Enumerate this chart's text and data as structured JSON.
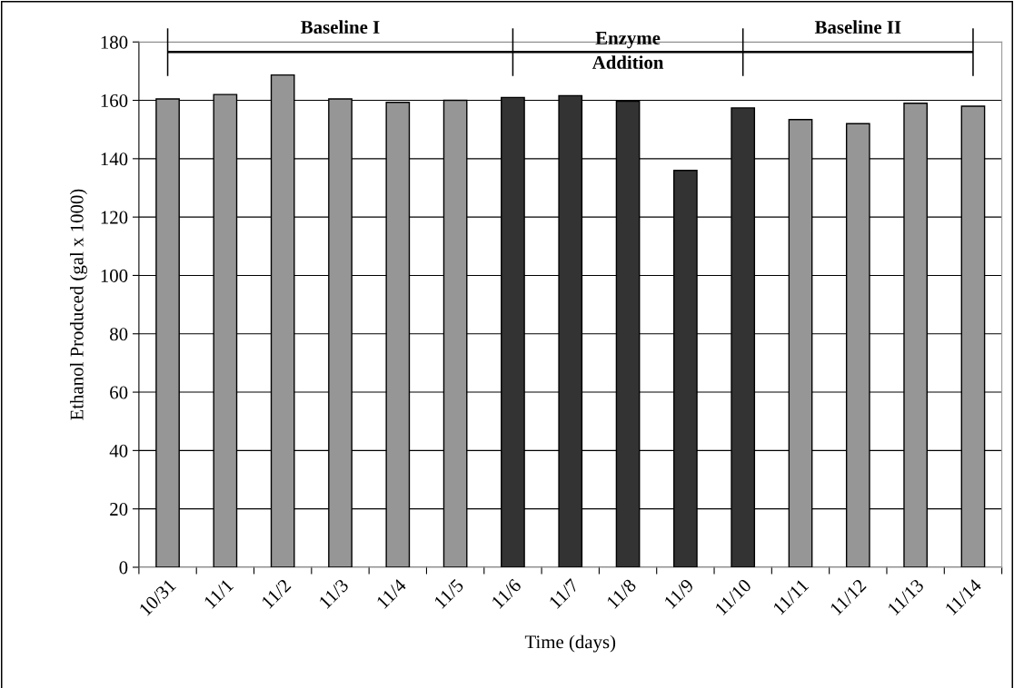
{
  "chart_data": {
    "type": "bar",
    "xlabel": "Time (days)",
    "ylabel": "Ethanol Produced (gal x 1000)",
    "categories": [
      "10/31",
      "11/1",
      "11/2",
      "11/3",
      "11/4",
      "11/5",
      "11/6",
      "11/7",
      "11/8",
      "11/9",
      "11/10",
      "11/11",
      "11/12",
      "11/13",
      "11/14"
    ],
    "values": [
      160.5,
      162,
      168.7,
      160.5,
      159.3,
      160,
      161,
      161.6,
      159.7,
      136,
      157.4,
      153.4,
      152,
      159,
      158
    ],
    "colors": [
      "#969696",
      "#969696",
      "#969696",
      "#969696",
      "#969696",
      "#969696",
      "#333333",
      "#333333",
      "#333333",
      "#333333",
      "#333333",
      "#969696",
      "#969696",
      "#969696",
      "#969696"
    ],
    "ylim": [
      0,
      180
    ],
    "yticks": [
      0,
      20,
      40,
      60,
      80,
      100,
      120,
      140,
      160,
      180
    ],
    "grid": "y",
    "annotations": [
      "Baseline I",
      "Enzyme\nAddition",
      "Baseline II"
    ]
  }
}
